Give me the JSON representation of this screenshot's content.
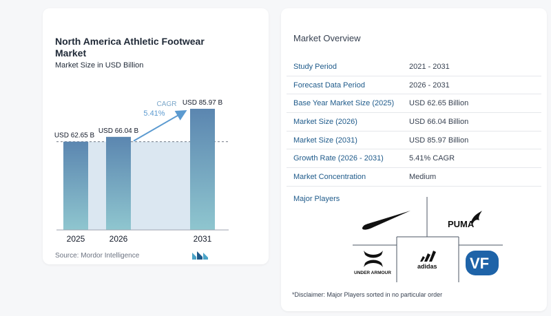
{
  "chart": {
    "title": "North America Athletic Footwear Market",
    "subtitle": "Market Size in USD Billion",
    "source": "Source: Mordor Intelligence",
    "cagr_label": "CAGR",
    "cagr_value": "5.41%"
  },
  "chart_data": {
    "type": "bar",
    "categories": [
      "2025",
      "2026",
      "2031"
    ],
    "values": [
      62.65,
      66.04,
      85.97
    ],
    "data_labels": [
      "USD 62.65 B",
      "USD 66.04 B",
      "USD 85.97 B"
    ],
    "title": "North America Athletic Footwear Market",
    "subtitle": "Market Size in USD Billion",
    "xlabel": "",
    "ylabel": "",
    "ylim": [
      0,
      90
    ],
    "grid": false,
    "annotation": {
      "label": "CAGR",
      "value": "5.41%"
    },
    "colors": {
      "bar_top": "#5b86b0",
      "bar_bottom": "#8fc6cf",
      "arrow": "#5b9ad0",
      "reference_fill": "#dbe7f1"
    }
  },
  "overview": {
    "title": "Market Overview",
    "rows": [
      {
        "key": "Study Period",
        "value": "2021 - 2031"
      },
      {
        "key": "Forecast Data Period",
        "value": "2026 - 2031"
      },
      {
        "key": "Base Year Market Size (2025)",
        "value": "USD 62.65 Billion"
      },
      {
        "key": "Market Size (2026)",
        "value": "USD 66.04 Billion"
      },
      {
        "key": "Market Size (2031)",
        "value": "USD 85.97 Billion"
      },
      {
        "key": "Growth Rate (2026 - 2031)",
        "value": "5.41% CAGR"
      },
      {
        "key": "Market Concentration",
        "value": "Medium"
      }
    ]
  },
  "players": {
    "title": "Major Players",
    "logos": [
      "nike-logo",
      "puma-logo",
      "under-armour-logo",
      "adidas-logo",
      "vf-logo"
    ],
    "puma_text": "PUMA",
    "ua_text": "UNDER ARMOUR",
    "adidas_text": "adidas",
    "vf_text": "VF"
  },
  "disclaimer": "*Disclaimer: Major Players sorted in no particular order"
}
